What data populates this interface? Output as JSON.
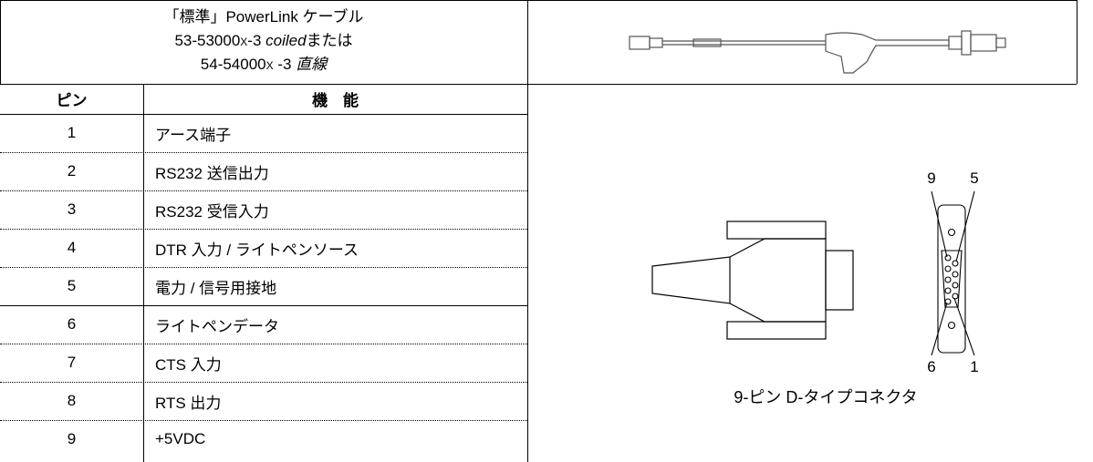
{
  "header": {
    "lines": [
      [
        "「標準」PowerLink ケーブル"
      ],
      [
        "53-53000x-3",
        "coiled",
        "または"
      ],
      [
        "54-54000x -3",
        "直線"
      ]
    ]
  },
  "table": {
    "columns": [
      "ピン",
      "機　能"
    ],
    "rows": [
      [
        1,
        "アース端子"
      ],
      [
        2,
        "RS232 送信出力"
      ],
      [
        3,
        "RS232 受信入力"
      ],
      [
        4,
        "DTR 入力 / ライトペンソース"
      ],
      [
        5,
        "電力 / 信号用接地"
      ],
      [
        6,
        "ライトペンデータ"
      ],
      [
        7,
        "CTS 入力"
      ],
      [
        8,
        "RTS 出力"
      ],
      [
        9,
        "+5VDC"
      ]
    ]
  },
  "diagram": {
    "pin_labels": [
      "9",
      "5",
      "6",
      "1"
    ],
    "caption": "9-ピン D-タイプコネクタ"
  }
}
